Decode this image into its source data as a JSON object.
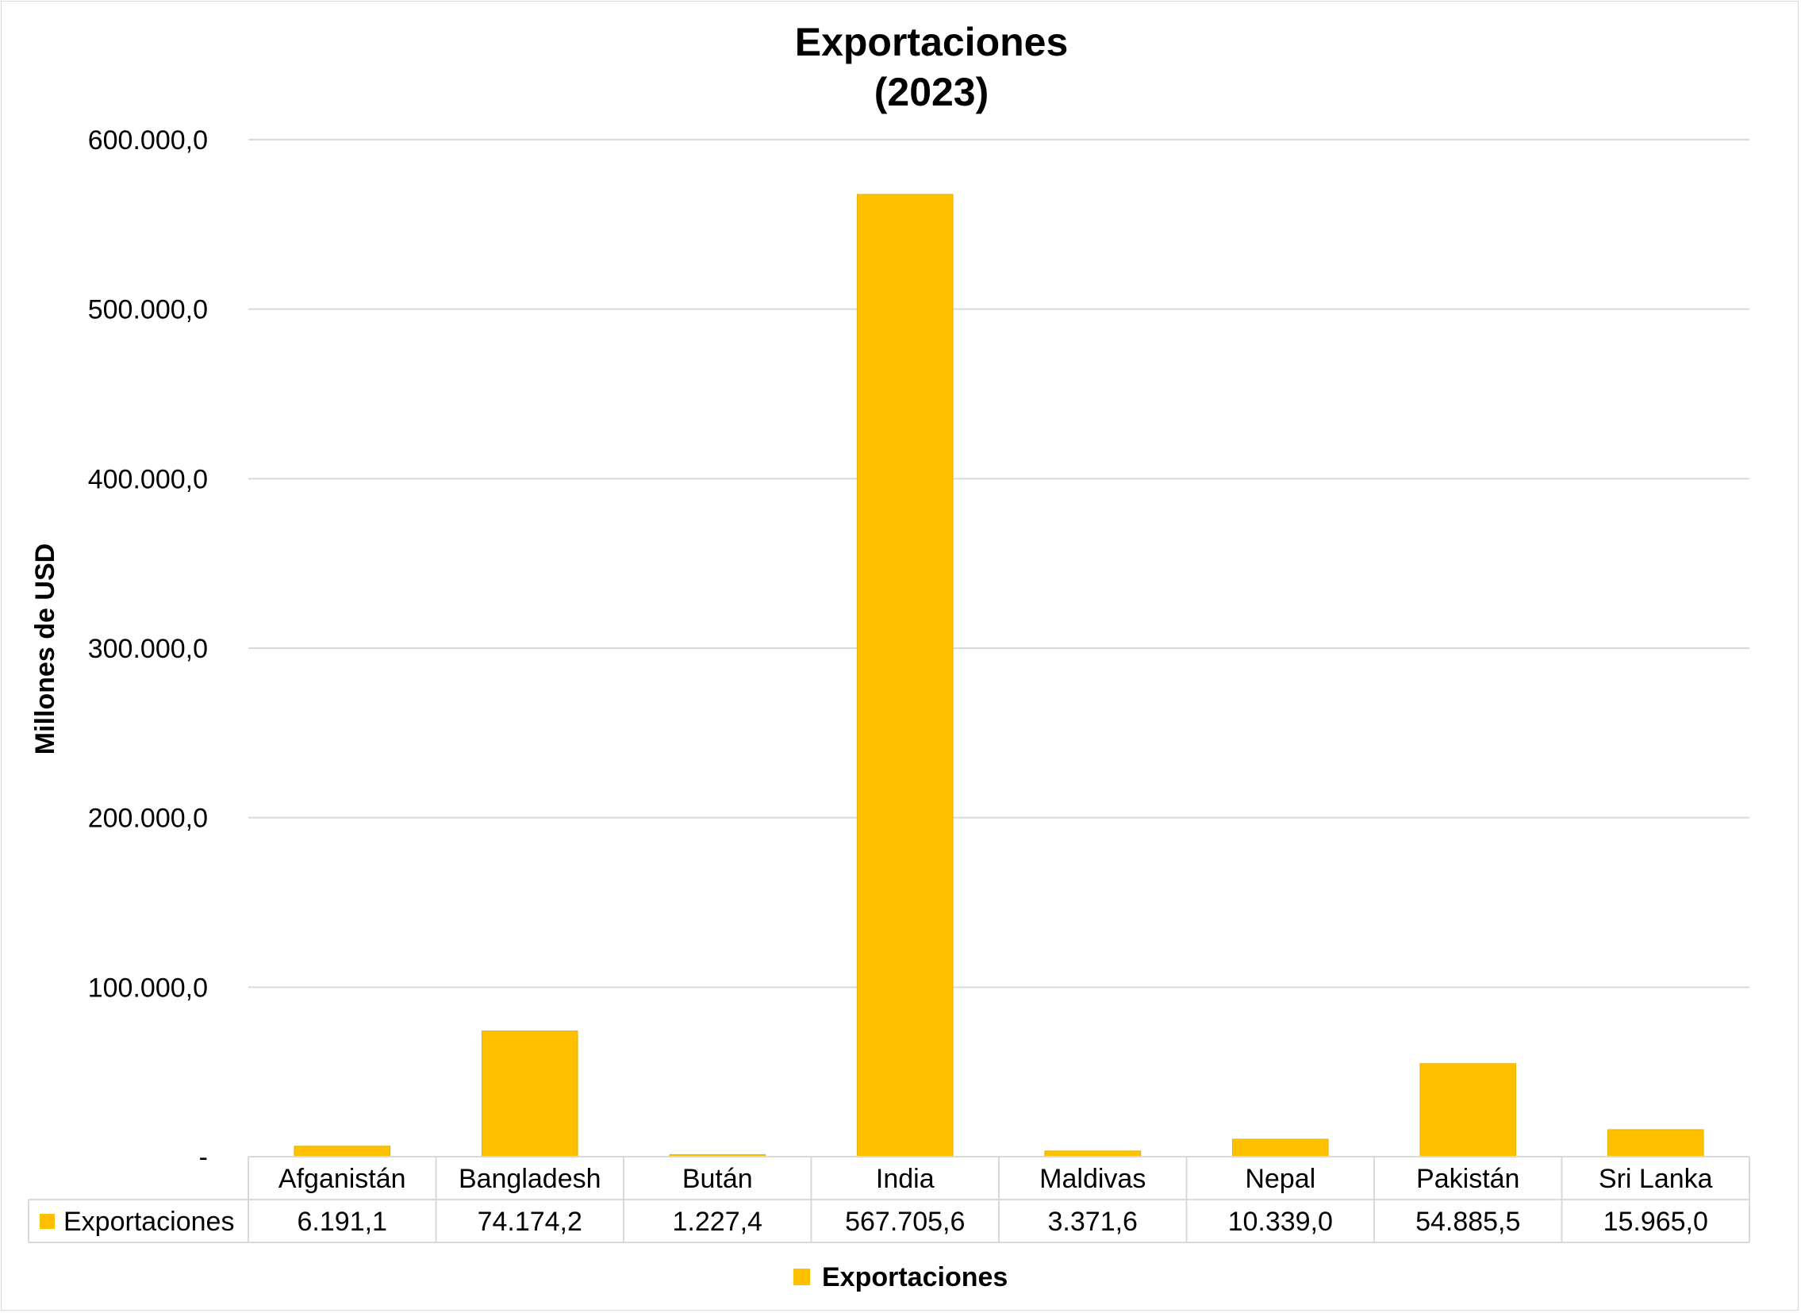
{
  "chart_data": {
    "type": "bar",
    "title": "Exportaciones",
    "subtitle": "(2023)",
    "ylabel": "Millones de USD",
    "xlabel": "",
    "ylim": [
      0,
      600000
    ],
    "yticks": [
      0,
      100000,
      200000,
      300000,
      400000,
      500000,
      600000
    ],
    "ytick_labels": [
      "-",
      "100.000,0",
      "200.000,0",
      "300.000,0",
      "400.000,0",
      "500.000,0",
      "600.000,0"
    ],
    "grid": true,
    "legend_position": "bottom",
    "categories": [
      "Afganistán",
      "Bangladesh",
      "Bután",
      "India",
      "Maldivas",
      "Nepal",
      "Pakistán",
      "Sri Lanka"
    ],
    "series": [
      {
        "name": "Exportaciones",
        "color": "#FFC000",
        "values": [
          6191.1,
          74174.2,
          1227.4,
          567705.6,
          3371.6,
          10339.0,
          54885.5,
          15965.0
        ],
        "value_labels": [
          "6.191,1",
          "74.174,2",
          "1.227,4",
          "567.705,6",
          "3.371,6",
          "10.339,0",
          "54.885,5",
          "15.965,0"
        ]
      }
    ],
    "data_table": true
  }
}
